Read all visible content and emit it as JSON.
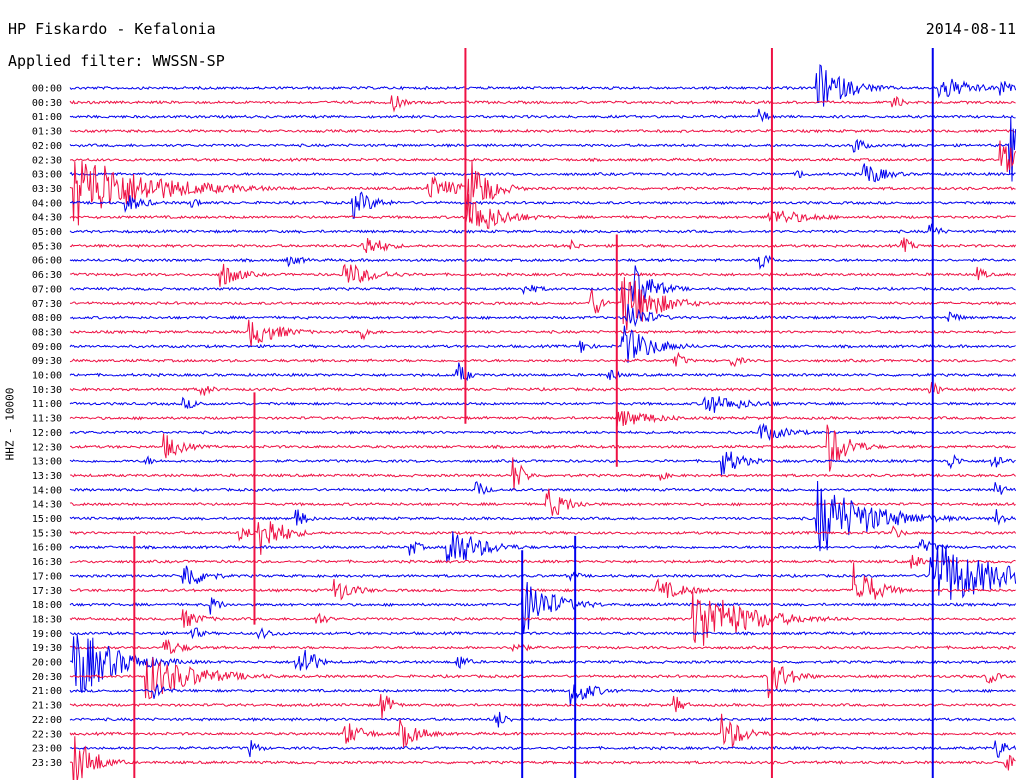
{
  "header": {
    "station": "HP Fiskardo - Kefalonia",
    "filter": "Applied filter: WWSSN-SP",
    "date": "2014-08-11"
  },
  "chart_data": {
    "type": "line",
    "ylabel": "HHZ - 10000",
    "colors": [
      "#0000ee",
      "#ee1144"
    ],
    "xlim": [
      0,
      1
    ],
    "rows": [
      "00:00",
      "00:30",
      "01:00",
      "01:30",
      "02:00",
      "02:30",
      "03:00",
      "03:30",
      "04:00",
      "04:30",
      "05:00",
      "05:30",
      "06:00",
      "06:30",
      "07:00",
      "07:30",
      "08:00",
      "08:30",
      "09:00",
      "09:30",
      "10:00",
      "10:30",
      "11:00",
      "11:30",
      "12:00",
      "12:30",
      "13:00",
      "13:30",
      "14:00",
      "14:30",
      "15:00",
      "15:30",
      "16:00",
      "16:30",
      "17:00",
      "17:30",
      "18:00",
      "18:30",
      "19:00",
      "19:30",
      "20:00",
      "20:30",
      "21:00",
      "21:30",
      "22:00",
      "22:30",
      "23:00",
      "23:30"
    ],
    "events": [
      {
        "row": 0,
        "t": 0.79,
        "a": 26,
        "d": 0.03
      },
      {
        "row": 0,
        "t": 0.92,
        "a": 14,
        "d": 0.03
      },
      {
        "row": 0,
        "t": 0.985,
        "a": 10,
        "d": 0.01
      },
      {
        "row": 1,
        "t": 0.34,
        "a": 12,
        "d": 0.01
      },
      {
        "row": 1,
        "t": 0.87,
        "a": 8,
        "d": 0.01
      },
      {
        "row": 2,
        "t": 0.73,
        "a": 8,
        "d": 0.01
      },
      {
        "row": 4,
        "t": 0.83,
        "a": 10,
        "d": 0.01
      },
      {
        "row": 4,
        "t": 0.995,
        "a": 40,
        "d": 0.02
      },
      {
        "row": 5,
        "t": 0.985,
        "a": 20,
        "d": 0.02
      },
      {
        "row": 6,
        "t": 0.84,
        "a": 14,
        "d": 0.02
      },
      {
        "row": 6,
        "t": 0.77,
        "a": 6,
        "d": 0.01
      },
      {
        "row": 7,
        "t": 0.005,
        "a": 40,
        "d": 0.07
      },
      {
        "row": 7,
        "t": 0.38,
        "a": 14,
        "d": 0.03
      },
      {
        "row": 7,
        "t": 0.42,
        "a": 40,
        "d": 0.02
      },
      {
        "row": 7,
        "t": 0.17,
        "a": 6,
        "d": 0.01
      },
      {
        "row": 8,
        "t": 0.3,
        "a": 16,
        "d": 0.02
      },
      {
        "row": 8,
        "t": 0.06,
        "a": 10,
        "d": 0.02
      },
      {
        "row": 8,
        "t": 0.13,
        "a": 6,
        "d": 0.01
      },
      {
        "row": 9,
        "t": 0.42,
        "a": 26,
        "d": 0.03
      },
      {
        "row": 9,
        "t": 0.74,
        "a": 10,
        "d": 0.04
      },
      {
        "row": 10,
        "t": 0.91,
        "a": 10,
        "d": 0.01
      },
      {
        "row": 11,
        "t": 0.31,
        "a": 14,
        "d": 0.02
      },
      {
        "row": 11,
        "t": 0.88,
        "a": 10,
        "d": 0.01
      },
      {
        "row": 11,
        "t": 0.53,
        "a": 6,
        "d": 0.01
      },
      {
        "row": 12,
        "t": 0.73,
        "a": 12,
        "d": 0.01
      },
      {
        "row": 12,
        "t": 0.23,
        "a": 6,
        "d": 0.02
      },
      {
        "row": 13,
        "t": 0.16,
        "a": 14,
        "d": 0.02
      },
      {
        "row": 13,
        "t": 0.29,
        "a": 14,
        "d": 0.03
      },
      {
        "row": 13,
        "t": 0.96,
        "a": 8,
        "d": 0.01
      },
      {
        "row": 14,
        "t": 0.595,
        "a": 30,
        "d": 0.02
      },
      {
        "row": 14,
        "t": 0.48,
        "a": 6,
        "d": 0.02
      },
      {
        "row": 15,
        "t": 0.55,
        "a": 22,
        "d": 0.01
      },
      {
        "row": 15,
        "t": 0.585,
        "a": 36,
        "d": 0.03
      },
      {
        "row": 16,
        "t": 0.59,
        "a": 18,
        "d": 0.02
      },
      {
        "row": 16,
        "t": 0.93,
        "a": 8,
        "d": 0.01
      },
      {
        "row": 17,
        "t": 0.19,
        "a": 16,
        "d": 0.03
      },
      {
        "row": 17,
        "t": 0.31,
        "a": 8,
        "d": 0.01
      },
      {
        "row": 18,
        "t": 0.585,
        "a": 22,
        "d": 0.03
      },
      {
        "row": 18,
        "t": 0.54,
        "a": 8,
        "d": 0.01
      },
      {
        "row": 19,
        "t": 0.64,
        "a": 10,
        "d": 0.01
      },
      {
        "row": 19,
        "t": 0.7,
        "a": 8,
        "d": 0.01
      },
      {
        "row": 20,
        "t": 0.41,
        "a": 14,
        "d": 0.01
      },
      {
        "row": 20,
        "t": 0.57,
        "a": 8,
        "d": 0.01
      },
      {
        "row": 21,
        "t": 0.14,
        "a": 8,
        "d": 0.01
      },
      {
        "row": 21,
        "t": 0.91,
        "a": 10,
        "d": 0.01
      },
      {
        "row": 22,
        "t": 0.67,
        "a": 12,
        "d": 0.04
      },
      {
        "row": 22,
        "t": 0.12,
        "a": 6,
        "d": 0.02
      },
      {
        "row": 23,
        "t": 0.58,
        "a": 10,
        "d": 0.04
      },
      {
        "row": 24,
        "t": 0.73,
        "a": 10,
        "d": 0.03
      },
      {
        "row": 25,
        "t": 0.1,
        "a": 14,
        "d": 0.02
      },
      {
        "row": 25,
        "t": 0.8,
        "a": 30,
        "d": 0.02
      },
      {
        "row": 26,
        "t": 0.69,
        "a": 16,
        "d": 0.02
      },
      {
        "row": 26,
        "t": 0.93,
        "a": 10,
        "d": 0.01
      },
      {
        "row": 26,
        "t": 0.975,
        "a": 14,
        "d": 0.01
      },
      {
        "row": 26,
        "t": 0.08,
        "a": 6,
        "d": 0.01
      },
      {
        "row": 27,
        "t": 0.47,
        "a": 20,
        "d": 0.01
      },
      {
        "row": 27,
        "t": 0.62,
        "a": 8,
        "d": 0.01
      },
      {
        "row": 28,
        "t": 0.43,
        "a": 10,
        "d": 0.01
      },
      {
        "row": 28,
        "t": 0.98,
        "a": 8,
        "d": 0.01
      },
      {
        "row": 29,
        "t": 0.505,
        "a": 18,
        "d": 0.02
      },
      {
        "row": 30,
        "t": 0.79,
        "a": 40,
        "d": 0.05
      },
      {
        "row": 30,
        "t": 0.24,
        "a": 12,
        "d": 0.01
      },
      {
        "row": 30,
        "t": 0.98,
        "a": 10,
        "d": 0.01
      },
      {
        "row": 31,
        "t": 0.2,
        "a": 30,
        "d": 0.02
      },
      {
        "row": 31,
        "t": 0.18,
        "a": 10,
        "d": 0.01
      },
      {
        "row": 31,
        "t": 0.87,
        "a": 8,
        "d": 0.01
      },
      {
        "row": 32,
        "t": 0.4,
        "a": 26,
        "d": 0.03
      },
      {
        "row": 32,
        "t": 0.36,
        "a": 10,
        "d": 0.01
      },
      {
        "row": 32,
        "t": 0.9,
        "a": 8,
        "d": 0.02
      },
      {
        "row": 33,
        "t": 0.89,
        "a": 10,
        "d": 0.01
      },
      {
        "row": 34,
        "t": 0.12,
        "a": 18,
        "d": 0.02
      },
      {
        "row": 34,
        "t": 0.91,
        "a": 40,
        "d": 0.06
      },
      {
        "row": 34,
        "t": 0.53,
        "a": 6,
        "d": 0.01
      },
      {
        "row": 35,
        "t": 0.62,
        "a": 12,
        "d": 0.03
      },
      {
        "row": 35,
        "t": 0.83,
        "a": 30,
        "d": 0.02
      },
      {
        "row": 35,
        "t": 0.28,
        "a": 14,
        "d": 0.02
      },
      {
        "row": 36,
        "t": 0.15,
        "a": 10,
        "d": 0.01
      },
      {
        "row": 36,
        "t": 0.48,
        "a": 30,
        "d": 0.03
      },
      {
        "row": 37,
        "t": 0.66,
        "a": 36,
        "d": 0.05
      },
      {
        "row": 37,
        "t": 0.12,
        "a": 10,
        "d": 0.02
      },
      {
        "row": 37,
        "t": 0.26,
        "a": 10,
        "d": 0.01
      },
      {
        "row": 38,
        "t": 0.13,
        "a": 8,
        "d": 0.01
      },
      {
        "row": 38,
        "t": 0.2,
        "a": 6,
        "d": 0.02
      },
      {
        "row": 39,
        "t": 0.1,
        "a": 10,
        "d": 0.02
      },
      {
        "row": 39,
        "t": 0.47,
        "a": 10,
        "d": 0.01
      },
      {
        "row": 40,
        "t": 0.005,
        "a": 40,
        "d": 0.04
      },
      {
        "row": 40,
        "t": 0.24,
        "a": 18,
        "d": 0.01
      },
      {
        "row": 40,
        "t": 0.25,
        "a": 20,
        "d": 0.01
      },
      {
        "row": 40,
        "t": 0.41,
        "a": 10,
        "d": 0.01
      },
      {
        "row": 41,
        "t": 0.08,
        "a": 26,
        "d": 0.05
      },
      {
        "row": 41,
        "t": 0.74,
        "a": 22,
        "d": 0.02
      },
      {
        "row": 41,
        "t": 0.97,
        "a": 10,
        "d": 0.01
      },
      {
        "row": 42,
        "t": 0.09,
        "a": 12,
        "d": 0.01
      },
      {
        "row": 42,
        "t": 0.53,
        "a": 18,
        "d": 0.02
      },
      {
        "row": 43,
        "t": 0.33,
        "a": 16,
        "d": 0.01
      },
      {
        "row": 43,
        "t": 0.64,
        "a": 10,
        "d": 0.01
      },
      {
        "row": 44,
        "t": 0.45,
        "a": 12,
        "d": 0.01
      },
      {
        "row": 45,
        "t": 0.29,
        "a": 14,
        "d": 0.02
      },
      {
        "row": 45,
        "t": 0.35,
        "a": 16,
        "d": 0.02
      },
      {
        "row": 45,
        "t": 0.69,
        "a": 22,
        "d": 0.02
      },
      {
        "row": 46,
        "t": 0.19,
        "a": 10,
        "d": 0.01
      },
      {
        "row": 46,
        "t": 0.98,
        "a": 12,
        "d": 0.01
      },
      {
        "row": 47,
        "t": 0.005,
        "a": 30,
        "d": 0.02
      },
      {
        "row": 47,
        "t": 0.99,
        "a": 10,
        "d": 0.01
      }
    ],
    "spikes": [
      {
        "t": 0.418,
        "row_from": 0,
        "row_to": 22,
        "color": "#ee1144"
      },
      {
        "t": 0.742,
        "row_from": 0,
        "row_to": 47,
        "color": "#ee1144"
      },
      {
        "t": 0.912,
        "row_from": 0,
        "row_to": 47,
        "color": "#0000ee"
      },
      {
        "t": 0.578,
        "row_from": 13,
        "row_to": 25,
        "color": "#ee1144"
      },
      {
        "t": 0.478,
        "row_from": 35,
        "row_to": 47,
        "color": "#0000ee"
      },
      {
        "t": 0.534,
        "row_from": 34,
        "row_to": 47,
        "color": "#0000ee"
      },
      {
        "t": 0.068,
        "row_from": 34,
        "row_to": 47,
        "color": "#ee1144"
      },
      {
        "t": 0.195,
        "row_from": 24,
        "row_to": 36,
        "color": "#ee1144"
      }
    ]
  }
}
